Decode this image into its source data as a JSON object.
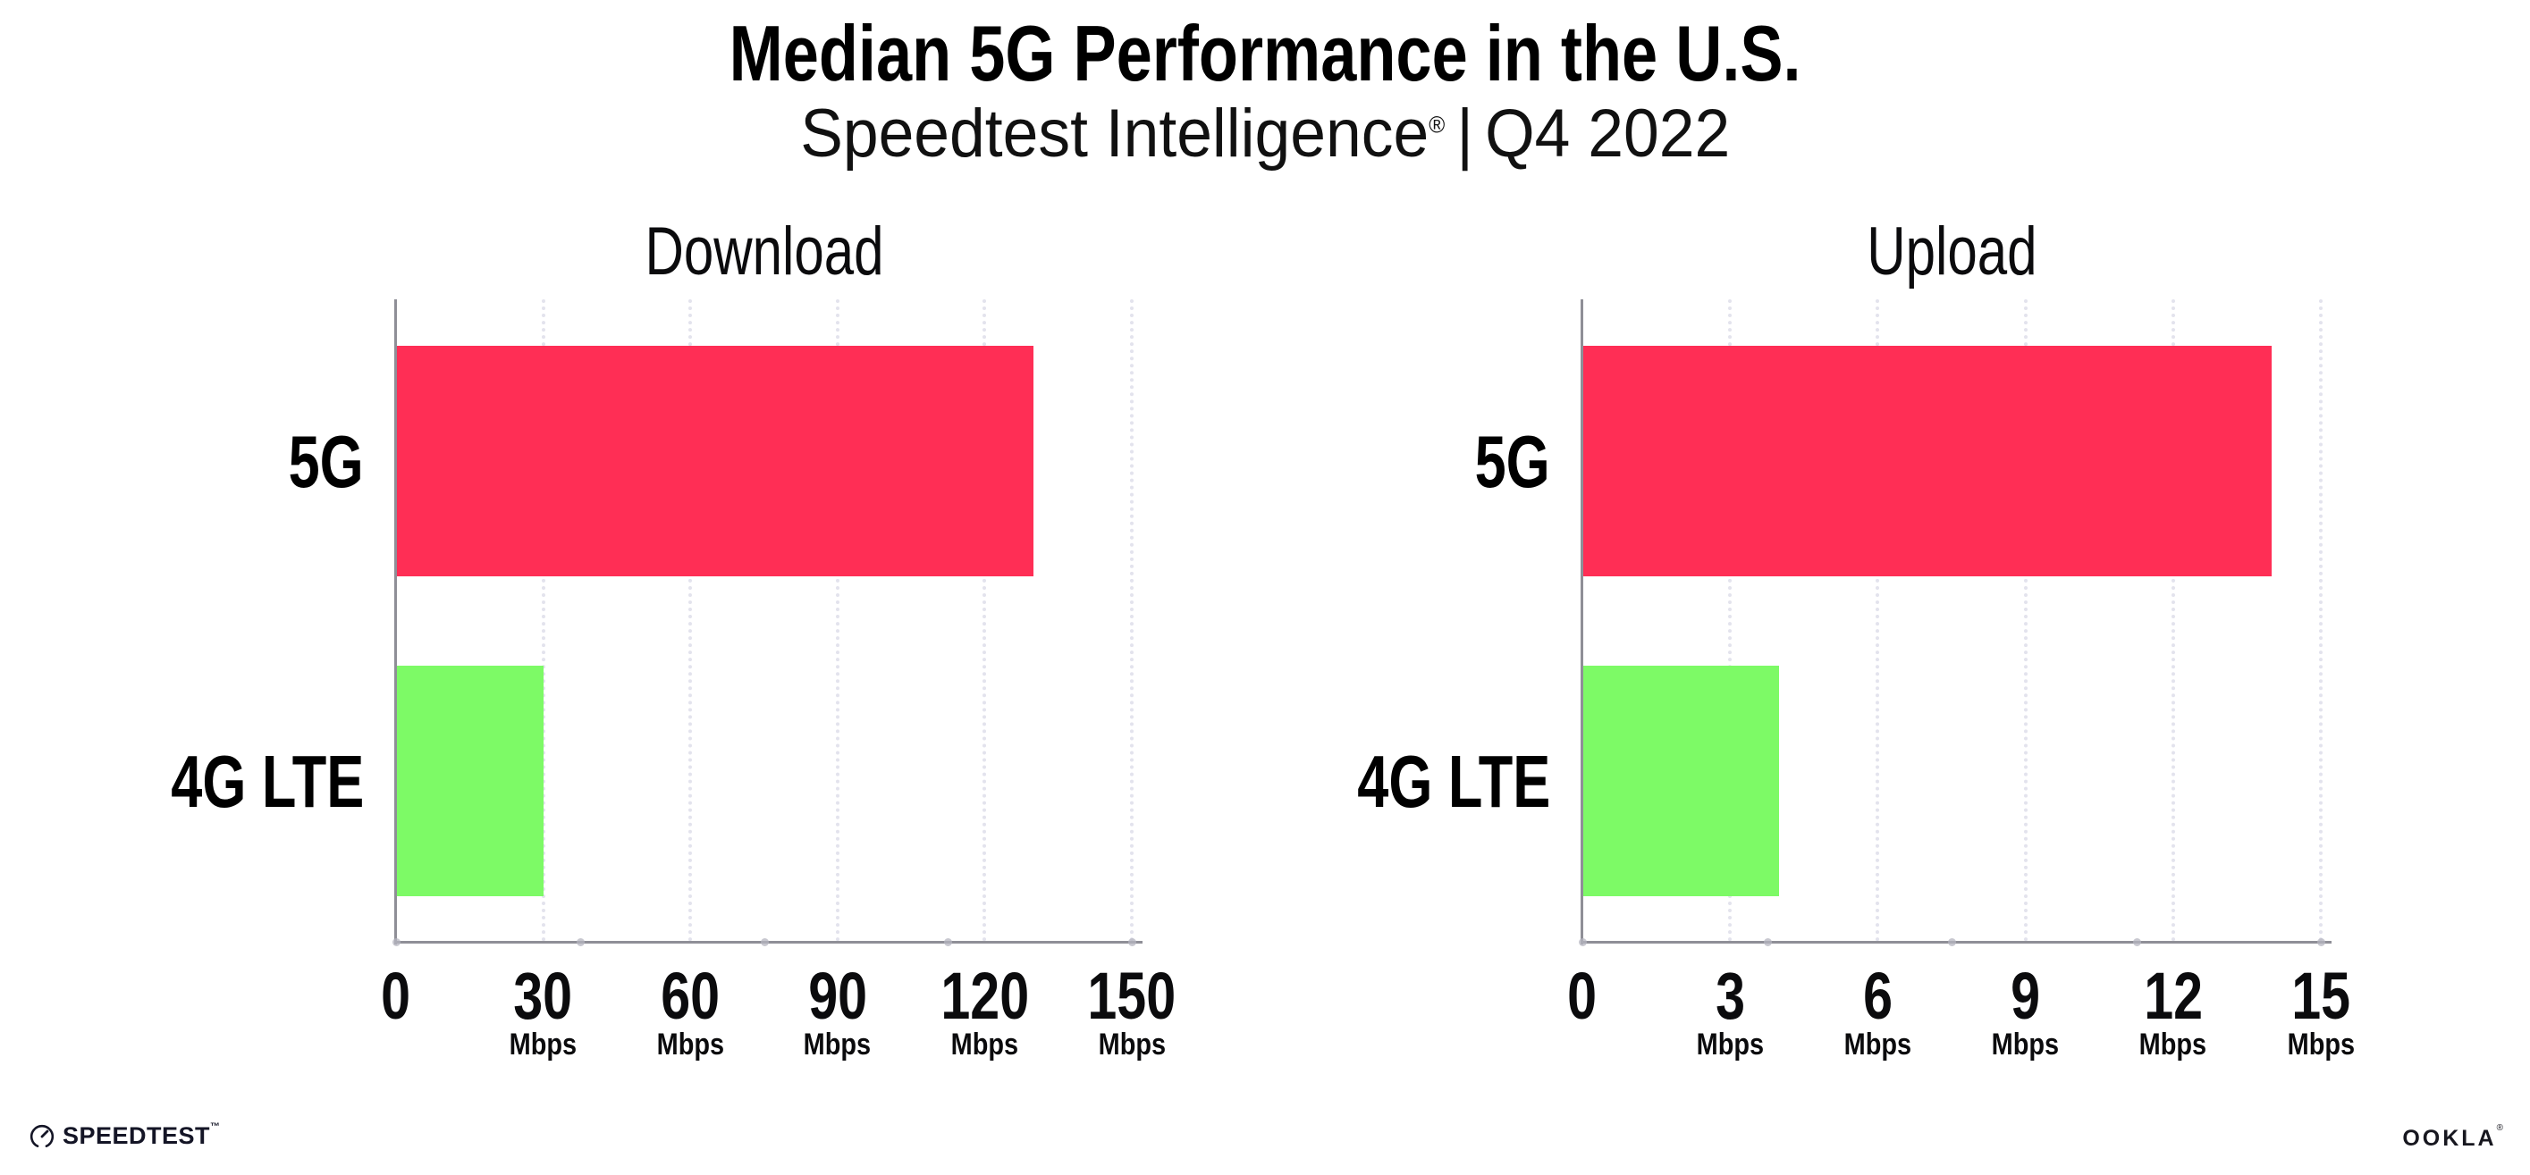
{
  "header": {
    "title": "Median 5G Performance in the U.S.",
    "subtitle": {
      "brand": "Speedtest Intelligence",
      "reg": "®",
      "separator": "|",
      "period": "Q4 2022"
    }
  },
  "chart_data": [
    {
      "type": "bar",
      "orientation": "horizontal",
      "title": "Download",
      "unit": "Mbps",
      "categories": [
        "5G",
        "4G LTE"
      ],
      "values": [
        130,
        30
      ],
      "xlim": [
        0,
        150
      ],
      "xticks": [
        0,
        30,
        60,
        90,
        120,
        150
      ],
      "bar_colors": [
        "#FF2E55",
        "#7DFA66"
      ],
      "grid": "vertical-dotted",
      "legend": "none"
    },
    {
      "type": "bar",
      "orientation": "horizontal",
      "title": "Upload",
      "unit": "Mbps",
      "categories": [
        "5G",
        "4G LTE"
      ],
      "values": [
        14,
        4
      ],
      "xlim": [
        0,
        15
      ],
      "xticks": [
        0,
        3,
        6,
        9,
        12,
        15
      ],
      "bar_colors": [
        "#FF2E55",
        "#7DFA66"
      ],
      "grid": "vertical-dotted",
      "legend": "none"
    }
  ],
  "footer": {
    "speedtest": {
      "label": "SPEEDTEST",
      "tm": "™"
    },
    "ookla": {
      "label": "OOKLA",
      "reg": "®"
    }
  },
  "colors": {
    "bar_5g": "#FF2E55",
    "bar_4g_lte": "#7DFA66",
    "gridline": "#E3E3ED",
    "axis": "#8F8F97",
    "text": "#0B0B0D",
    "footer_text": "#141526",
    "background": "#FFFFFF"
  }
}
